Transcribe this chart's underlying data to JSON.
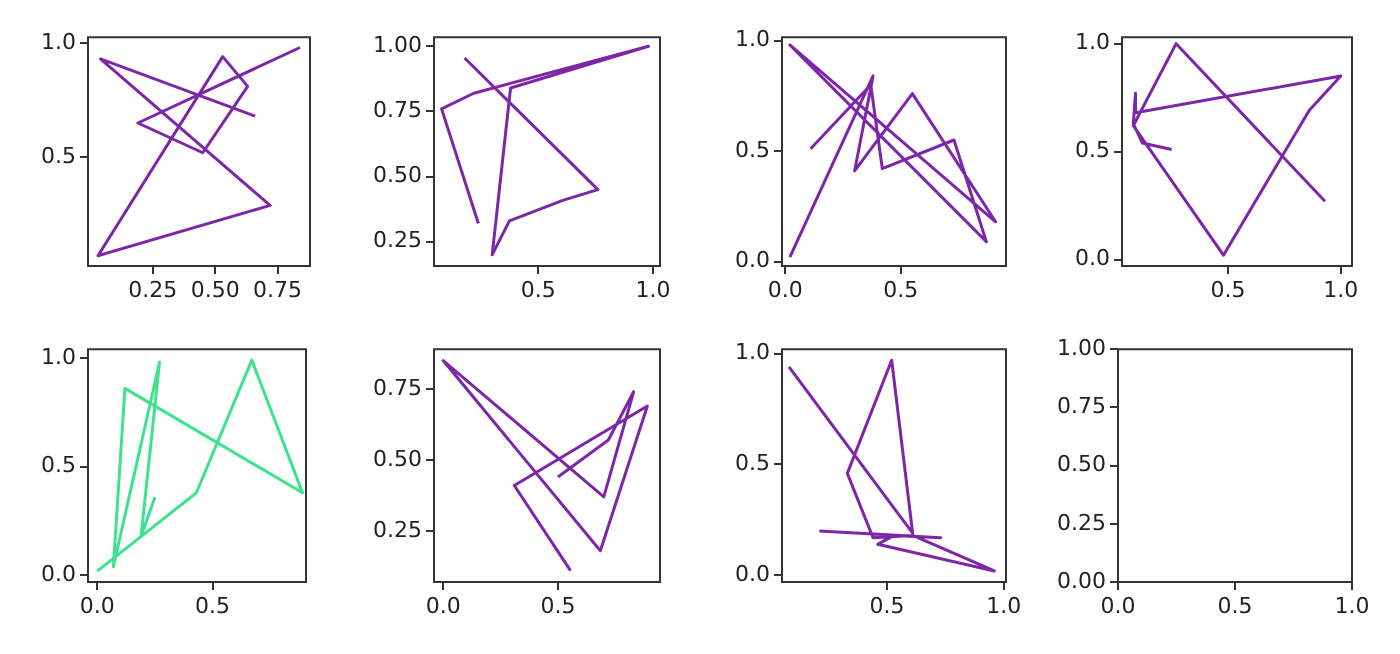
{
  "chart_data": [
    {
      "type": "line",
      "xlim": [
        -0.01,
        0.88
      ],
      "ylim": [
        0.025,
        1.025
      ],
      "xticks": [
        0.25,
        {
          "value": 0.5,
          "label": "0.50"
        },
        0.75
      ],
      "yticks": [
        0.5,
        {
          "value": 1,
          "label": "1.0"
        }
      ],
      "series": [
        {
          "color": "#7d26a8",
          "x": [
            0.66,
            0.04,
            0.72,
            0.03,
            0.53,
            0.63,
            0.45,
            0.19,
            0.84
          ],
          "values": [
            0.68,
            0.93,
            0.29,
            0.07,
            0.94,
            0.81,
            0.52,
            0.65,
            0.98
          ]
        }
      ]
    },
    {
      "type": "line",
      "xlim": [
        0.047,
        1.03
      ],
      "ylim": [
        0.157,
        1.035
      ],
      "xticks": [
        0.5,
        {
          "value": 1,
          "label": "1.0"
        }
      ],
      "yticks": [
        0.25,
        {
          "value": 0.5,
          "label": "0.50"
        },
        0.75,
        {
          "value": 1,
          "label": "1.00"
        }
      ],
      "series": [
        {
          "color": "#7d26a8",
          "x": [
            0.24,
            0.08,
            0.22,
            0.98,
            0.38,
            0.3,
            0.375,
            0.61,
            0.76,
            0.18
          ],
          "values": [
            0.32,
            0.76,
            0.82,
            1.0,
            0.84,
            0.2,
            0.33,
            0.41,
            0.45,
            0.955
          ]
        }
      ]
    },
    {
      "type": "line",
      "xlim": [
        -0.014,
        0.955
      ],
      "ylim": [
        -0.02,
        1.015
      ],
      "xticks": [
        {
          "value": 0,
          "label": "0.0"
        },
        0.5
      ],
      "yticks": [
        {
          "value": 0,
          "label": "0.0"
        },
        0.5,
        {
          "value": 1,
          "label": "1.0"
        }
      ],
      "series": [
        {
          "color": "#7d26a8",
          "x": [
            0.02,
            0.38,
            0.3,
            0.55,
            0.91,
            0.02,
            0.87,
            0.73,
            0.42,
            0.37,
            0.11
          ],
          "values": [
            0.02,
            0.84,
            0.41,
            0.76,
            0.18,
            0.98,
            0.09,
            0.55,
            0.42,
            0.8,
            0.51
          ]
        }
      ]
    },
    {
      "type": "line",
      "xlim": [
        0.03,
        1.05
      ],
      "ylim": [
        -0.03,
        1.03
      ],
      "xticks": [
        0.5,
        {
          "value": 1,
          "label": "1.0"
        }
      ],
      "yticks": [
        {
          "value": 0,
          "label": "0.0"
        },
        0.5,
        {
          "value": 1,
          "label": "1.0"
        }
      ],
      "series": [
        {
          "color": "#7d26a8",
          "x": [
            0.25,
            0.12,
            0.08,
            0.09,
            0.09,
            1.0,
            0.86,
            0.48,
            0.12,
            0.08,
            0.27,
            0.93
          ],
          "values": [
            0.51,
            0.54,
            0.63,
            0.77,
            0.68,
            0.85,
            0.69,
            0.02,
            0.56,
            0.62,
            1.0,
            0.27
          ]
        }
      ]
    },
    {
      "type": "line",
      "xlim": [
        -0.04,
        0.905
      ],
      "ylim": [
        -0.03,
        1.04
      ],
      "xticks": [
        {
          "value": 0,
          "label": "0.0"
        },
        0.5
      ],
      "yticks": [
        {
          "value": 0,
          "label": "0.0"
        },
        0.5,
        {
          "value": 1,
          "label": "1.0"
        }
      ],
      "series": [
        {
          "color": "#3be38c",
          "x": [
            0.0,
            0.43,
            0.67,
            0.89,
            0.12,
            0.07,
            0.27,
            0.19,
            0.25
          ],
          "values": [
            0.02,
            0.38,
            0.99,
            0.38,
            0.86,
            0.04,
            0.98,
            0.18,
            0.36
          ]
        }
      ]
    },
    {
      "type": "line",
      "xlim": [
        -0.04,
        0.945
      ],
      "ylim": [
        0.07,
        0.89
      ],
      "xticks": [
        {
          "value": 0,
          "label": "0.0"
        },
        0.5
      ],
      "yticks": [
        0.25,
        {
          "value": 0.5,
          "label": "0.50"
        },
        0.75
      ],
      "series": [
        {
          "color": "#7d26a8",
          "x": [
            0.555,
            0.31,
            0.89,
            0.685,
            0.0,
            0.7,
            0.83,
            0.72,
            0.5
          ],
          "values": [
            0.11,
            0.41,
            0.69,
            0.18,
            0.85,
            0.37,
            0.74,
            0.57,
            0.44
          ]
        }
      ]
    },
    {
      "type": "line",
      "xlim": [
        0.05,
        1.01
      ],
      "ylim": [
        -0.03,
        1.02
      ],
      "xticks": [
        0.5,
        {
          "value": 1,
          "label": "1.0"
        }
      ],
      "yticks": [
        {
          "value": 0,
          "label": "0.0"
        },
        0.5,
        {
          "value": 1,
          "label": "1.0"
        }
      ],
      "series": [
        {
          "color": "#7d26a8",
          "x": [
            0.08,
            0.61,
            0.52,
            0.33,
            0.44,
            0.61,
            0.96,
            0.46,
            0.53,
            0.73,
            0.21
          ],
          "values": [
            0.94,
            0.19,
            0.97,
            0.46,
            0.17,
            0.18,
            0.02,
            0.14,
            0.18,
            0.17,
            0.2
          ]
        }
      ]
    },
    {
      "type": "line",
      "xlim": [
        0,
        1
      ],
      "ylim": [
        0,
        1
      ],
      "xticks": [
        {
          "value": 0,
          "label": "0.0"
        },
        0.5,
        {
          "value": 1,
          "label": "1.0"
        }
      ],
      "yticks": [
        {
          "value": 0,
          "label": "0.00"
        },
        0.25,
        {
          "value": 0.5,
          "label": "0.50"
        },
        0.75,
        {
          "value": 1,
          "label": "1.00"
        }
      ]
    }
  ]
}
